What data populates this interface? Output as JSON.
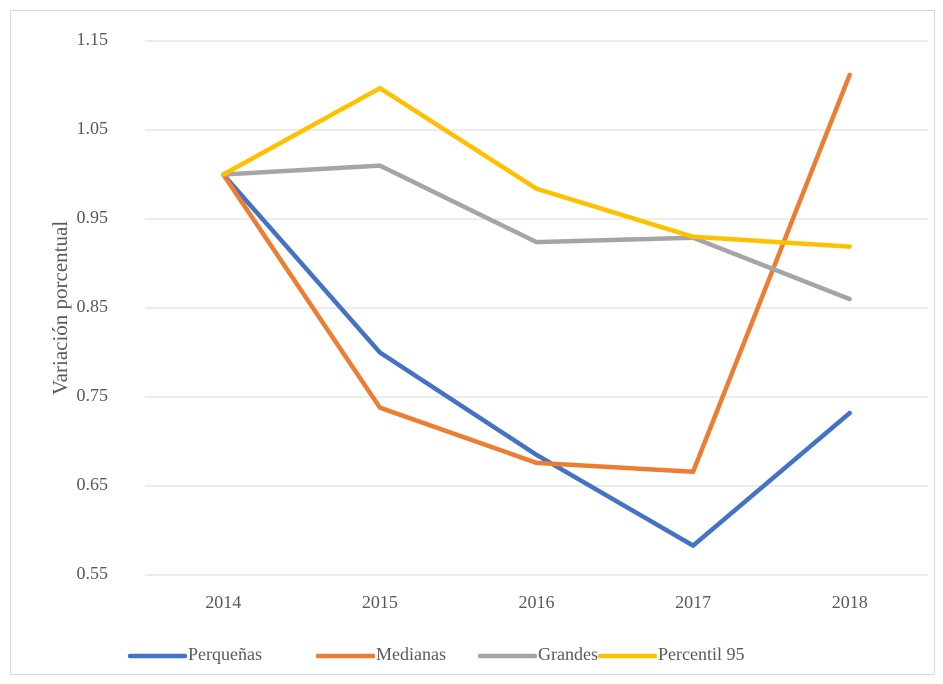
{
  "chart_data": {
    "type": "line",
    "y_label": "Variación porcentual",
    "categories": [
      "2014",
      "2015",
      "2016",
      "2017",
      "2018"
    ],
    "series": [
      {
        "name": "Perqueñas",
        "color": "#4472c4",
        "values": [
          1.0,
          0.8,
          0.685,
          0.583,
          0.732
        ]
      },
      {
        "name": "Medianas",
        "color": "#ed7d31",
        "values": [
          1.0,
          0.738,
          0.676,
          0.666,
          1.112
        ]
      },
      {
        "name": "Grandes",
        "color": "#a5a5a5",
        "values": [
          1.0,
          1.01,
          0.924,
          0.929,
          0.86
        ]
      },
      {
        "name": "Percentil 95",
        "color": "#ffc000",
        "values": [
          1.0,
          1.097,
          0.984,
          0.93,
          0.919
        ]
      }
    ],
    "ylim": [
      0.55,
      1.15
    ],
    "yticks": [
      0.55,
      0.65,
      0.75,
      0.85,
      0.95,
      1.05,
      1.15
    ],
    "grid": true,
    "legend": "bottom"
  }
}
